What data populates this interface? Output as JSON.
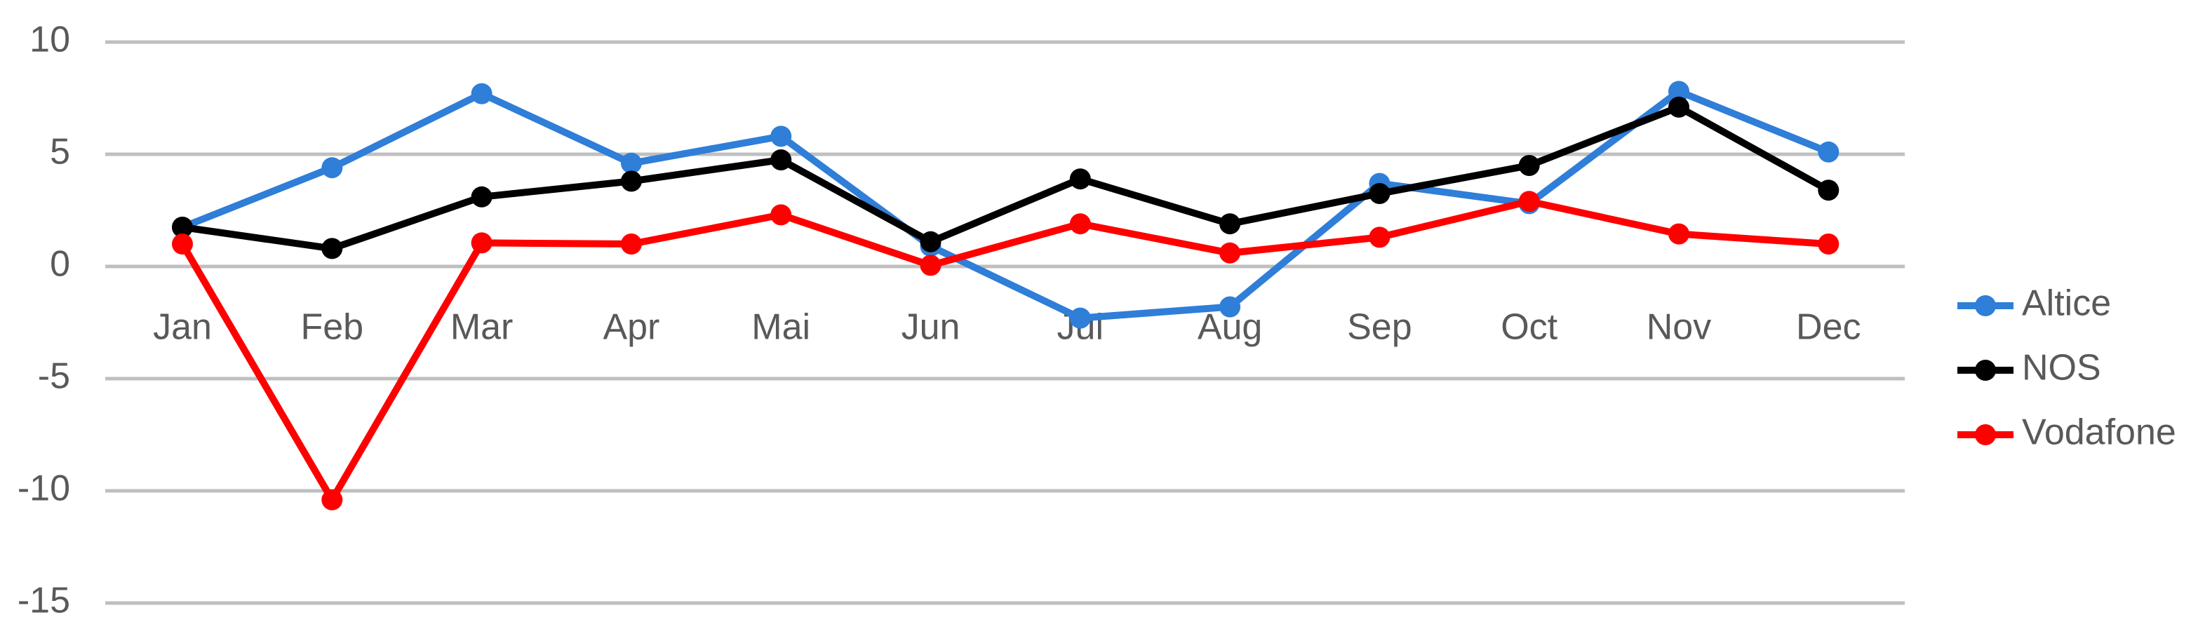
{
  "chart_data": {
    "type": "line",
    "categories": [
      "Jan",
      "Feb",
      "Mar",
      "Apr",
      "Mai",
      "Jun",
      "Jul",
      "Aug",
      "Sep",
      "Oct",
      "Nov",
      "Dec"
    ],
    "series": [
      {
        "name": "Altice",
        "color": "#2f7ed8",
        "values": [
          1.75,
          4.4,
          7.7,
          4.6,
          5.8,
          0.9,
          -2.3,
          -1.8,
          3.7,
          2.8,
          7.8,
          5.1
        ]
      },
      {
        "name": "NOS",
        "color": "#000000",
        "values": [
          1.75,
          0.8,
          3.1,
          3.8,
          4.75,
          1.1,
          3.9,
          1.9,
          3.25,
          4.5,
          7.1,
          3.4
        ]
      },
      {
        "name": "Vodafone",
        "color": "#ff0000",
        "values": [
          1.0,
          -10.4,
          1.05,
          1.0,
          2.3,
          0.05,
          1.9,
          0.6,
          1.3,
          2.9,
          1.45,
          1.0
        ]
      }
    ],
    "ylim": [
      -15,
      10
    ],
    "yticks": [
      -15,
      -10,
      -5,
      0,
      5,
      10
    ],
    "grid": true,
    "legend": "right"
  }
}
